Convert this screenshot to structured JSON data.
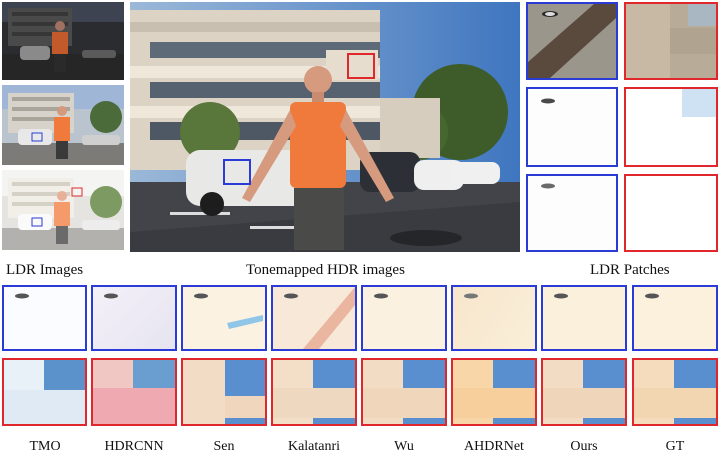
{
  "captions": {
    "ldr_images": "LDR Images",
    "hdr_images": "Tonemapped HDR images",
    "ldr_patches": "LDR Patches"
  },
  "methods": [
    {
      "label": "TMO"
    },
    {
      "label": "HDRCNN"
    },
    {
      "label": "Sen"
    },
    {
      "label": "Kalatanri"
    },
    {
      "label": "Wu"
    },
    {
      "label": "AHDRNet"
    },
    {
      "label": "Ours"
    },
    {
      "label": "GT"
    }
  ],
  "colors": {
    "blue_box": "#2a3bd6",
    "red_box": "#e0282c",
    "shirt": "#f07a3c",
    "sky": "#4f86c6"
  }
}
